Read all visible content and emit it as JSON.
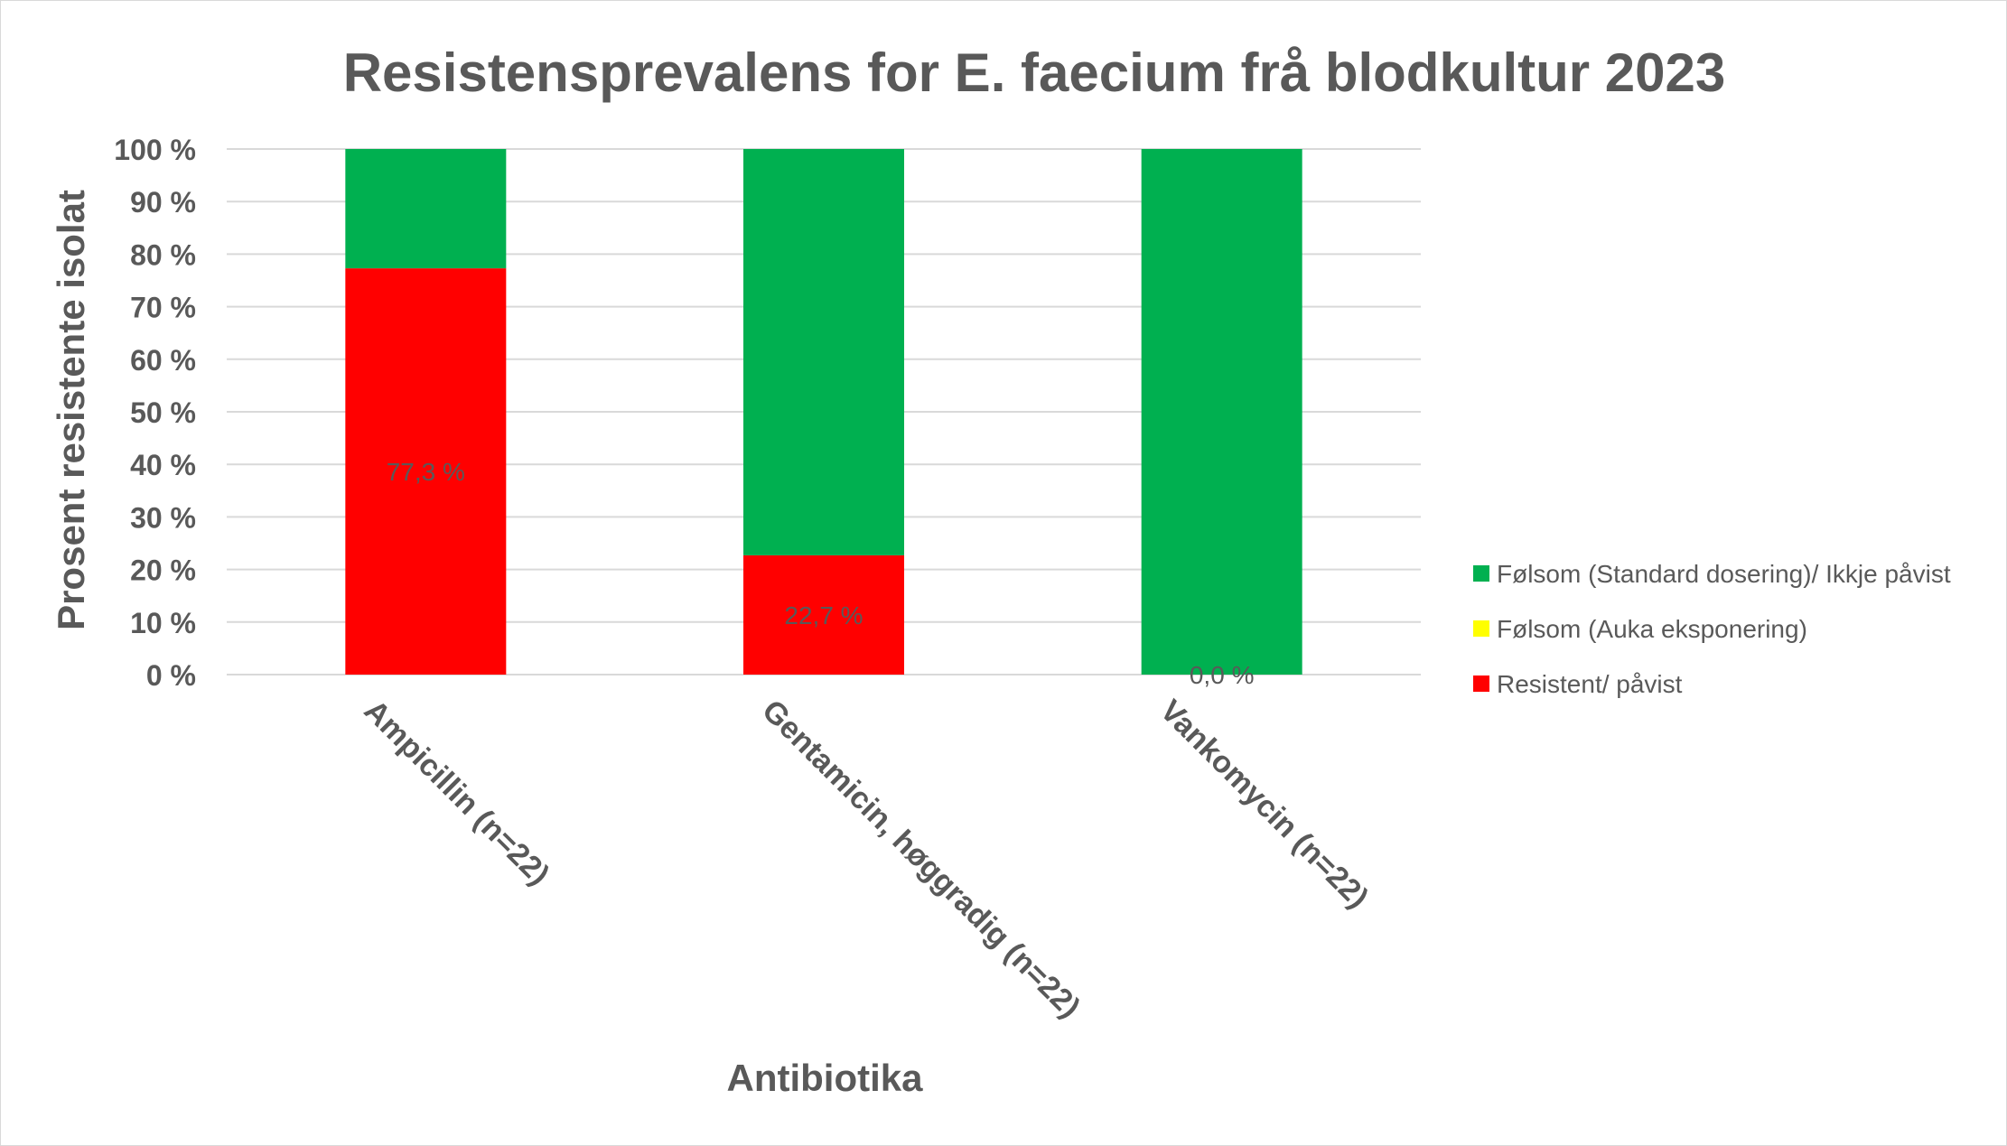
{
  "chart_data": {
    "type": "bar",
    "stacked": true,
    "title": "Resistensprevalens for E. faecium frå blodkultur 2023",
    "xlabel": "Antibiotika",
    "ylabel": "Prosent resistente isolat",
    "ylim": [
      0,
      100
    ],
    "yticks": [
      "0 %",
      "10 %",
      "20 %",
      "30 %",
      "40 %",
      "50 %",
      "60 %",
      "70 %",
      "80 %",
      "90 %",
      "100 %"
    ],
    "grid": true,
    "legend_position": "right",
    "categories": [
      "Ampicillin (n=22)",
      "Gentamicin, høggradig (n=22)",
      "Vankomycin (n=22)"
    ],
    "series": [
      {
        "name": "Resistent/ påvist",
        "color": "#ff0000",
        "values": [
          77.3,
          22.7,
          0.0
        ]
      },
      {
        "name": "Følsom (Auka eksponering)",
        "color": "#ffff00",
        "values": [
          0,
          0,
          0
        ]
      },
      {
        "name": "Følsom (Standard dosering)/ Ikkje påvist",
        "color": "#00b050",
        "values": [
          22.7,
          77.3,
          100.0
        ]
      }
    ],
    "data_labels": [
      "77,3 %",
      "22,7 %",
      "0,0 %"
    ],
    "legend_order": [
      "Følsom (Standard dosering)/ Ikkje påvist",
      "Følsom (Auka eksponering)",
      "Resistent/ påvist"
    ]
  }
}
